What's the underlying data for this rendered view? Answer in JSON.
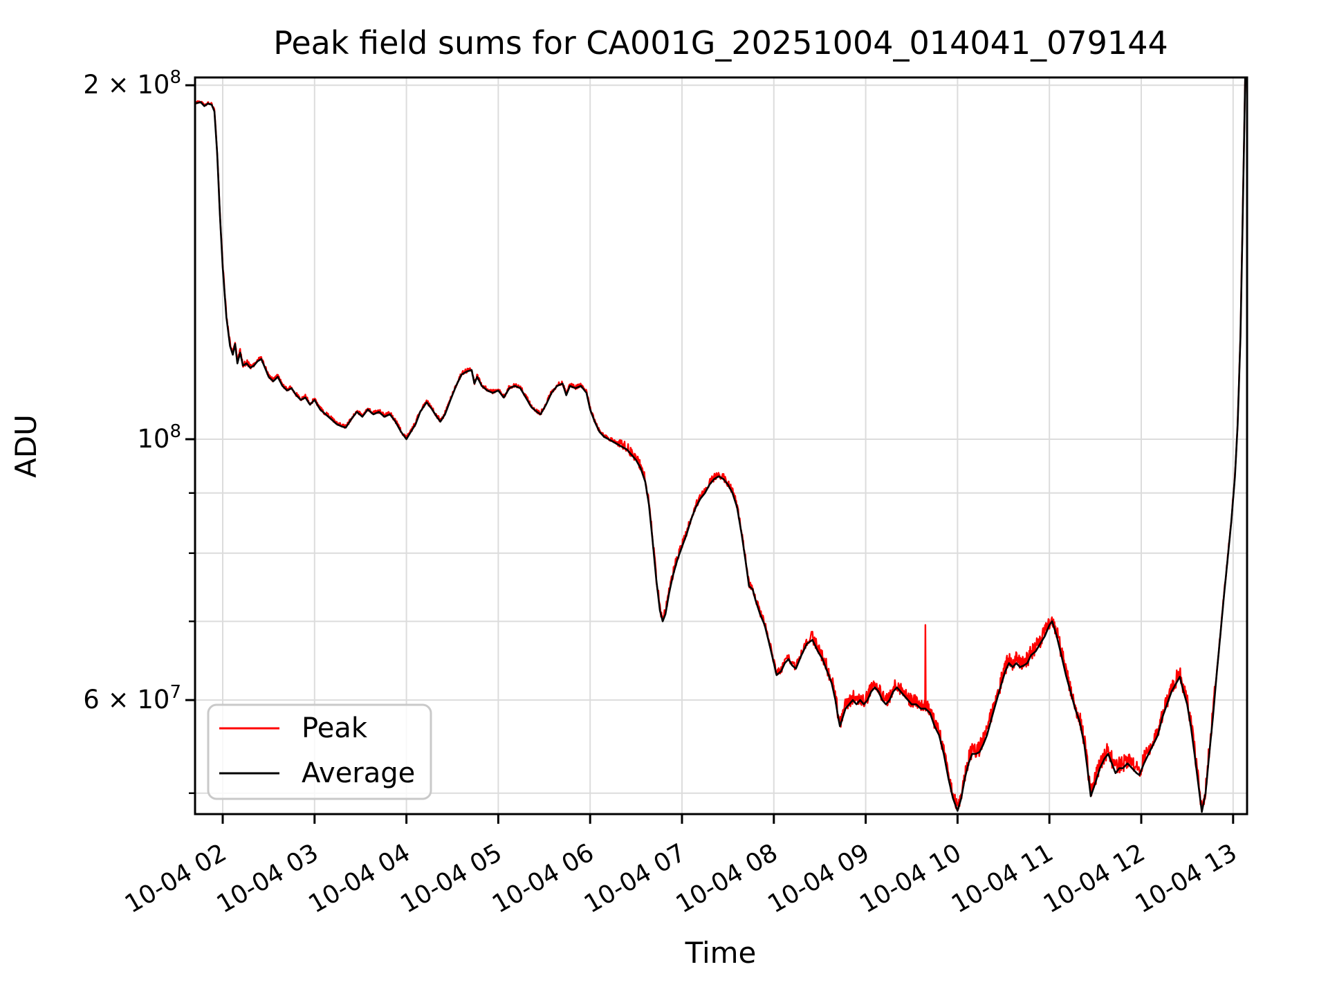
{
  "title": "Peak field sums for CA001G_20251004_014041_079144",
  "xlabel": "Time",
  "ylabel": "ADU",
  "legend": {
    "items": [
      {
        "label": "Peak",
        "color": "#ff0000"
      },
      {
        "label": "Average",
        "color": "#000000"
      }
    ]
  },
  "colors": {
    "peak": "#ff0000",
    "average": "#000000",
    "grid": "#dcdcdc",
    "spine": "#000000",
    "legend_border": "#c9c9c9"
  },
  "chart_data": {
    "type": "line",
    "title": "Peak field sums for CA001G_20251004_014041_079144",
    "xlabel": "Time",
    "ylabel": "ADU",
    "x_axis": "datetime (2025-10-04, hourly ticks)",
    "x_tick_hours": [
      2,
      3,
      4,
      5,
      6,
      7,
      8,
      9,
      10,
      11,
      12,
      13
    ],
    "x_tick_labels": [
      "10-04 02",
      "10-04 03",
      "10-04 04",
      "10-04 05",
      "10-04 06",
      "10-04 07",
      "10-04 08",
      "10-04 09",
      "10-04 10",
      "10-04 11",
      "10-04 12",
      "10-04 13"
    ],
    "xlim_hours": [
      1.699,
      13.152
    ],
    "y_scale": "log",
    "ylim_adu": [
      48000000.0,
      203000000.0
    ],
    "y_ticks": [
      {
        "millions": 200,
        "base": "2 × 10",
        "sup": "8"
      },
      {
        "millions": 100,
        "base": "10",
        "sup": "8"
      },
      {
        "millions": 90
      },
      {
        "millions": 80
      },
      {
        "millions": 70
      },
      {
        "millions": 60,
        "base": "6 × 10",
        "sup": "7"
      },
      {
        "millions": 50
      }
    ],
    "grid": true,
    "legend_position": "lower left",
    "series": [
      {
        "name": "Peak",
        "color": "#ff0000",
        "style": "average plus narrow upward noise spikes"
      },
      {
        "name": "Average",
        "color": "#000000"
      }
    ],
    "average_points_t_hours_vs_millions_adu": [
      [
        1.7,
        193
      ],
      [
        1.76,
        193.5
      ],
      [
        1.8,
        192
      ],
      [
        1.84,
        193
      ],
      [
        1.88,
        192.5
      ],
      [
        1.91,
        190
      ],
      [
        1.94,
        175
      ],
      [
        1.97,
        155
      ],
      [
        2.0,
        140
      ],
      [
        2.04,
        127
      ],
      [
        2.08,
        120
      ],
      [
        2.11,
        118
      ],
      [
        2.135,
        120.5
      ],
      [
        2.16,
        116
      ],
      [
        2.19,
        118.5
      ],
      [
        2.22,
        115.5
      ],
      [
        2.26,
        116
      ],
      [
        2.3,
        115
      ],
      [
        2.34,
        115.5
      ],
      [
        2.38,
        116.5
      ],
      [
        2.42,
        117
      ],
      [
        2.46,
        115
      ],
      [
        2.5,
        113
      ],
      [
        2.55,
        112
      ],
      [
        2.6,
        113
      ],
      [
        2.65,
        111
      ],
      [
        2.7,
        110
      ],
      [
        2.75,
        110.5
      ],
      [
        2.8,
        109
      ],
      [
        2.85,
        108
      ],
      [
        2.9,
        108.5
      ],
      [
        2.95,
        107
      ],
      [
        3.0,
        108
      ],
      [
        3.06,
        106
      ],
      [
        3.12,
        105
      ],
      [
        3.18,
        104
      ],
      [
        3.24,
        103
      ],
      [
        3.3,
        102.5
      ],
      [
        3.34,
        102.3
      ],
      [
        3.4,
        104
      ],
      [
        3.46,
        105.5
      ],
      [
        3.52,
        104.5
      ],
      [
        3.58,
        106
      ],
      [
        3.64,
        105
      ],
      [
        3.7,
        105.5
      ],
      [
        3.76,
        104.5
      ],
      [
        3.82,
        105
      ],
      [
        3.88,
        103.5
      ],
      [
        3.94,
        101.5
      ],
      [
        4.0,
        100
      ],
      [
        4.05,
        101.5
      ],
      [
        4.1,
        103
      ],
      [
        4.15,
        105.5
      ],
      [
        4.22,
        107.5
      ],
      [
        4.28,
        106
      ],
      [
        4.33,
        104.5
      ],
      [
        4.37,
        103.5
      ],
      [
        4.42,
        105
      ],
      [
        4.48,
        108
      ],
      [
        4.54,
        111
      ],
      [
        4.6,
        113.5
      ],
      [
        4.66,
        114.2
      ],
      [
        4.71,
        114.5
      ],
      [
        4.74,
        111.5
      ],
      [
        4.77,
        113
      ],
      [
        4.82,
        111
      ],
      [
        4.88,
        110
      ],
      [
        4.94,
        109.5
      ],
      [
        5.0,
        110
      ],
      [
        5.06,
        108.5
      ],
      [
        5.12,
        110.5
      ],
      [
        5.18,
        111
      ],
      [
        5.24,
        110.5
      ],
      [
        5.3,
        108.5
      ],
      [
        5.36,
        106.5
      ],
      [
        5.42,
        105.5
      ],
      [
        5.46,
        105
      ],
      [
        5.52,
        107
      ],
      [
        5.58,
        109.5
      ],
      [
        5.64,
        111
      ],
      [
        5.7,
        111.5
      ],
      [
        5.74,
        109
      ],
      [
        5.78,
        111
      ],
      [
        5.84,
        110.5
      ],
      [
        5.9,
        111
      ],
      [
        5.96,
        109.5
      ],
      [
        6.0,
        106
      ],
      [
        6.05,
        103.5
      ],
      [
        6.1,
        101.5
      ],
      [
        6.15,
        100.5
      ],
      [
        6.2,
        100
      ],
      [
        6.25,
        99.5
      ],
      [
        6.3,
        99
      ],
      [
        6.35,
        98.5
      ],
      [
        6.4,
        98
      ],
      [
        6.45,
        97
      ],
      [
        6.5,
        96
      ],
      [
        6.55,
        94.5
      ],
      [
        6.6,
        92
      ],
      [
        6.64,
        88
      ],
      [
        6.68,
        82
      ],
      [
        6.72,
        76
      ],
      [
        6.76,
        71.5
      ],
      [
        6.79,
        70
      ],
      [
        6.82,
        71
      ],
      [
        6.86,
        74
      ],
      [
        6.9,
        76.5
      ],
      [
        6.95,
        79
      ],
      [
        7.0,
        81
      ],
      [
        7.05,
        83
      ],
      [
        7.1,
        85.5
      ],
      [
        7.15,
        87.5
      ],
      [
        7.2,
        89
      ],
      [
        7.25,
        90
      ],
      [
        7.3,
        91.5
      ],
      [
        7.35,
        92.5
      ],
      [
        7.4,
        93
      ],
      [
        7.45,
        92.5
      ],
      [
        7.5,
        91.5
      ],
      [
        7.55,
        90
      ],
      [
        7.6,
        87.5
      ],
      [
        7.65,
        83
      ],
      [
        7.7,
        78
      ],
      [
        7.73,
        75
      ],
      [
        7.77,
        74.5
      ],
      [
        7.8,
        73
      ],
      [
        7.85,
        71
      ],
      [
        7.9,
        69.5
      ],
      [
        7.95,
        67
      ],
      [
        8.0,
        64.5
      ],
      [
        8.03,
        63
      ],
      [
        8.08,
        63.5
      ],
      [
        8.12,
        64.5
      ],
      [
        8.16,
        65
      ],
      [
        8.2,
        64.2
      ],
      [
        8.24,
        63.8
      ],
      [
        8.3,
        65.5
      ],
      [
        8.36,
        67
      ],
      [
        8.42,
        67.5
      ],
      [
        8.48,
        66
      ],
      [
        8.53,
        65
      ],
      [
        8.58,
        63.5
      ],
      [
        8.63,
        62
      ],
      [
        8.67,
        60
      ],
      [
        8.7,
        58
      ],
      [
        8.72,
        57
      ],
      [
        8.75,
        58
      ],
      [
        8.78,
        59
      ],
      [
        8.82,
        59.5
      ],
      [
        8.86,
        60
      ],
      [
        8.9,
        59.5
      ],
      [
        8.94,
        60
      ],
      [
        8.98,
        59.5
      ],
      [
        9.02,
        60
      ],
      [
        9.06,
        61
      ],
      [
        9.1,
        61.5
      ],
      [
        9.14,
        61
      ],
      [
        9.18,
        60
      ],
      [
        9.22,
        59.5
      ],
      [
        9.26,
        60
      ],
      [
        9.3,
        61
      ],
      [
        9.34,
        61.5
      ],
      [
        9.38,
        61
      ],
      [
        9.42,
        60.5
      ],
      [
        9.46,
        60
      ],
      [
        9.5,
        59.5
      ],
      [
        9.55,
        59.5
      ],
      [
        9.6,
        59
      ],
      [
        9.65,
        59
      ],
      [
        9.7,
        58.5
      ],
      [
        9.75,
        57
      ],
      [
        9.8,
        56
      ],
      [
        9.85,
        54
      ],
      [
        9.9,
        51.5
      ],
      [
        9.95,
        49.5
      ],
      [
        10.0,
        48.3
      ],
      [
        10.04,
        49.5
      ],
      [
        10.08,
        51.5
      ],
      [
        10.12,
        53
      ],
      [
        10.16,
        54
      ],
      [
        10.2,
        54
      ],
      [
        10.24,
        54.2
      ],
      [
        10.28,
        55
      ],
      [
        10.32,
        56
      ],
      [
        10.36,
        57.5
      ],
      [
        10.4,
        59
      ],
      [
        10.44,
        60.5
      ],
      [
        10.48,
        62
      ],
      [
        10.52,
        63.5
      ],
      [
        10.56,
        64.5
      ],
      [
        10.6,
        64
      ],
      [
        10.64,
        64.5
      ],
      [
        10.68,
        64
      ],
      [
        10.72,
        64.2
      ],
      [
        10.76,
        64.5
      ],
      [
        10.8,
        65.5
      ],
      [
        10.85,
        66
      ],
      [
        10.9,
        67
      ],
      [
        10.95,
        68
      ],
      [
        11.0,
        69.5
      ],
      [
        11.03,
        70
      ],
      [
        11.08,
        68
      ],
      [
        11.13,
        65.5
      ],
      [
        11.18,
        63
      ],
      [
        11.23,
        61
      ],
      [
        11.28,
        59
      ],
      [
        11.33,
        57.5
      ],
      [
        11.38,
        55
      ],
      [
        11.42,
        52
      ],
      [
        11.45,
        49.7
      ],
      [
        11.5,
        51
      ],
      [
        11.55,
        52.5
      ],
      [
        11.6,
        53.5
      ],
      [
        11.64,
        54
      ],
      [
        11.68,
        53
      ],
      [
        11.72,
        52
      ],
      [
        11.76,
        52.5
      ],
      [
        11.8,
        52.5
      ],
      [
        11.85,
        53
      ],
      [
        11.9,
        52.5
      ],
      [
        11.95,
        52
      ],
      [
        11.98,
        51.8
      ],
      [
        12.03,
        53
      ],
      [
        12.08,
        54
      ],
      [
        12.13,
        55
      ],
      [
        12.18,
        56
      ],
      [
        12.23,
        58
      ],
      [
        12.28,
        59.5
      ],
      [
        12.33,
        61
      ],
      [
        12.38,
        62
      ],
      [
        12.42,
        62.8
      ],
      [
        12.46,
        61
      ],
      [
        12.5,
        59.5
      ],
      [
        12.54,
        57
      ],
      [
        12.58,
        54
      ],
      [
        12.62,
        51
      ],
      [
        12.66,
        48.2
      ],
      [
        12.7,
        50
      ],
      [
        12.74,
        54
      ],
      [
        12.78,
        58
      ],
      [
        12.82,
        63
      ],
      [
        12.86,
        68
      ],
      [
        12.9,
        73.5
      ],
      [
        12.94,
        79
      ],
      [
        12.98,
        85
      ],
      [
        13.02,
        93
      ],
      [
        13.05,
        103
      ],
      [
        13.08,
        122
      ],
      [
        13.1,
        148
      ],
      [
        13.12,
        180
      ],
      [
        13.135,
        210
      ]
    ],
    "peak_extra_spikes_t_vs_millions": [
      [
        9.65,
        69.5
      ]
    ],
    "peak_noise_percent_segments": [
      [
        1.7,
        1.95,
        0.4
      ],
      [
        1.95,
        2.3,
        0.9
      ],
      [
        2.3,
        6.3,
        0.6
      ],
      [
        6.3,
        7.0,
        1.4
      ],
      [
        7.0,
        8.4,
        1.1
      ],
      [
        8.4,
        10.1,
        2.0
      ],
      [
        10.1,
        12.8,
        2.4
      ],
      [
        12.8,
        13.16,
        0.7
      ]
    ]
  }
}
